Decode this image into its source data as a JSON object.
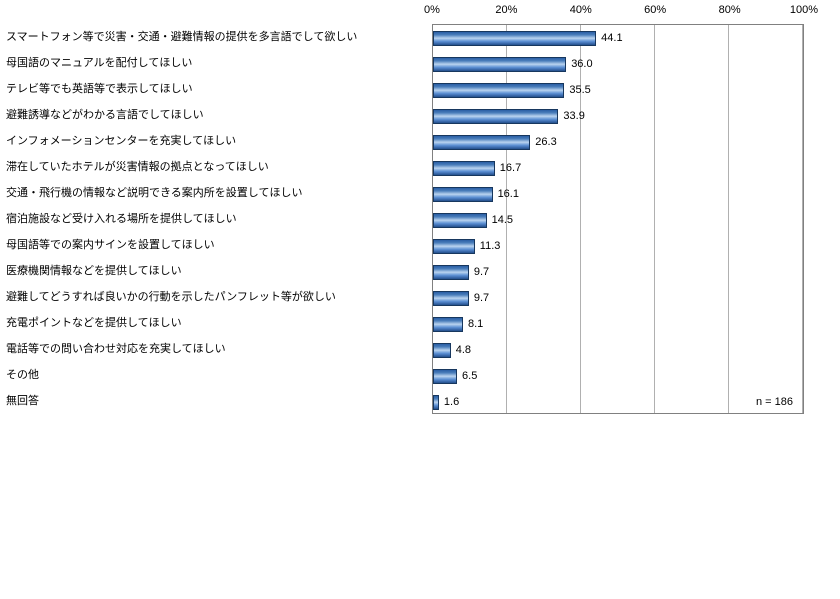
{
  "chart_data": {
    "type": "bar",
    "orientation": "horizontal",
    "title": "",
    "xlabel": "",
    "ylabel": "",
    "xlim": [
      0,
      100
    ],
    "grid": true,
    "legend": false,
    "axis_position": "top",
    "x_ticks": [
      "0%",
      "20%",
      "40%",
      "60%",
      "80%",
      "100%"
    ],
    "categories": [
      "スマートフォン等で災害・交通・避難情報の提供を多言語でして欲しい",
      "母国語のマニュアルを配付してほしい",
      "テレビ等でも英語等で表示してほしい",
      "避難誘導などがわかる言語でしてほしい",
      "インフォメーションセンターを充実してほしい",
      "滞在していたホテルが災害情報の拠点となってほしい",
      "交通・飛行機の情報など説明できる案内所を設置してほしい",
      "宿泊施設など受け入れる場所を提供してほしい",
      "母国語等での案内サインを設置してほしい",
      "医療機関情報などを提供してほしい",
      "避難してどうすれば良いかの行動を示したパンフレット等が欲しい",
      "充電ポイントなどを提供してほしい",
      "電話等での問い合わせ対応を充実してほしい",
      "その他",
      "無回答"
    ],
    "values": [
      44.1,
      36.0,
      35.5,
      33.9,
      26.3,
      16.7,
      16.1,
      14.5,
      11.3,
      9.7,
      9.7,
      8.1,
      4.8,
      6.5,
      1.6
    ],
    "sample_note": "n = 186",
    "bar_color": "#4a7ebb",
    "bar_border_color": "#17375e",
    "gridline_color": "#b0b0b0",
    "plot_border_color": "#808080"
  }
}
